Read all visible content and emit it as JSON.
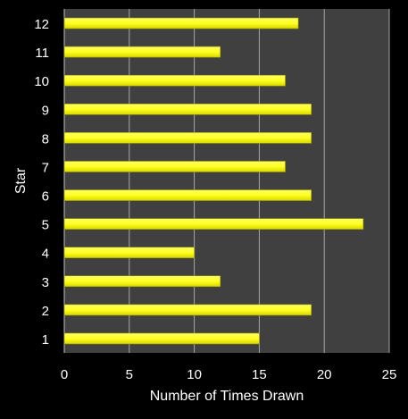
{
  "chart_data": {
    "type": "bar",
    "orientation": "horizontal",
    "categories": [
      "1",
      "2",
      "3",
      "4",
      "5",
      "6",
      "7",
      "8",
      "9",
      "10",
      "11",
      "12"
    ],
    "values": [
      15,
      19,
      12,
      10,
      23,
      19,
      17,
      19,
      19,
      17,
      12,
      18
    ],
    "xlabel": "Number of Times Drawn",
    "ylabel": "Star",
    "xlim": [
      0,
      25
    ],
    "xticks": [
      "0",
      "5",
      "10",
      "15",
      "20",
      "25"
    ],
    "grid": "vertical",
    "legend": "none",
    "colors": {
      "background": "#000000",
      "plot_area": "#404040",
      "bar": "#ffff33",
      "bar_edge": "#9a9a00",
      "grid": "#a6a6a6",
      "text": "#ffffff"
    }
  }
}
